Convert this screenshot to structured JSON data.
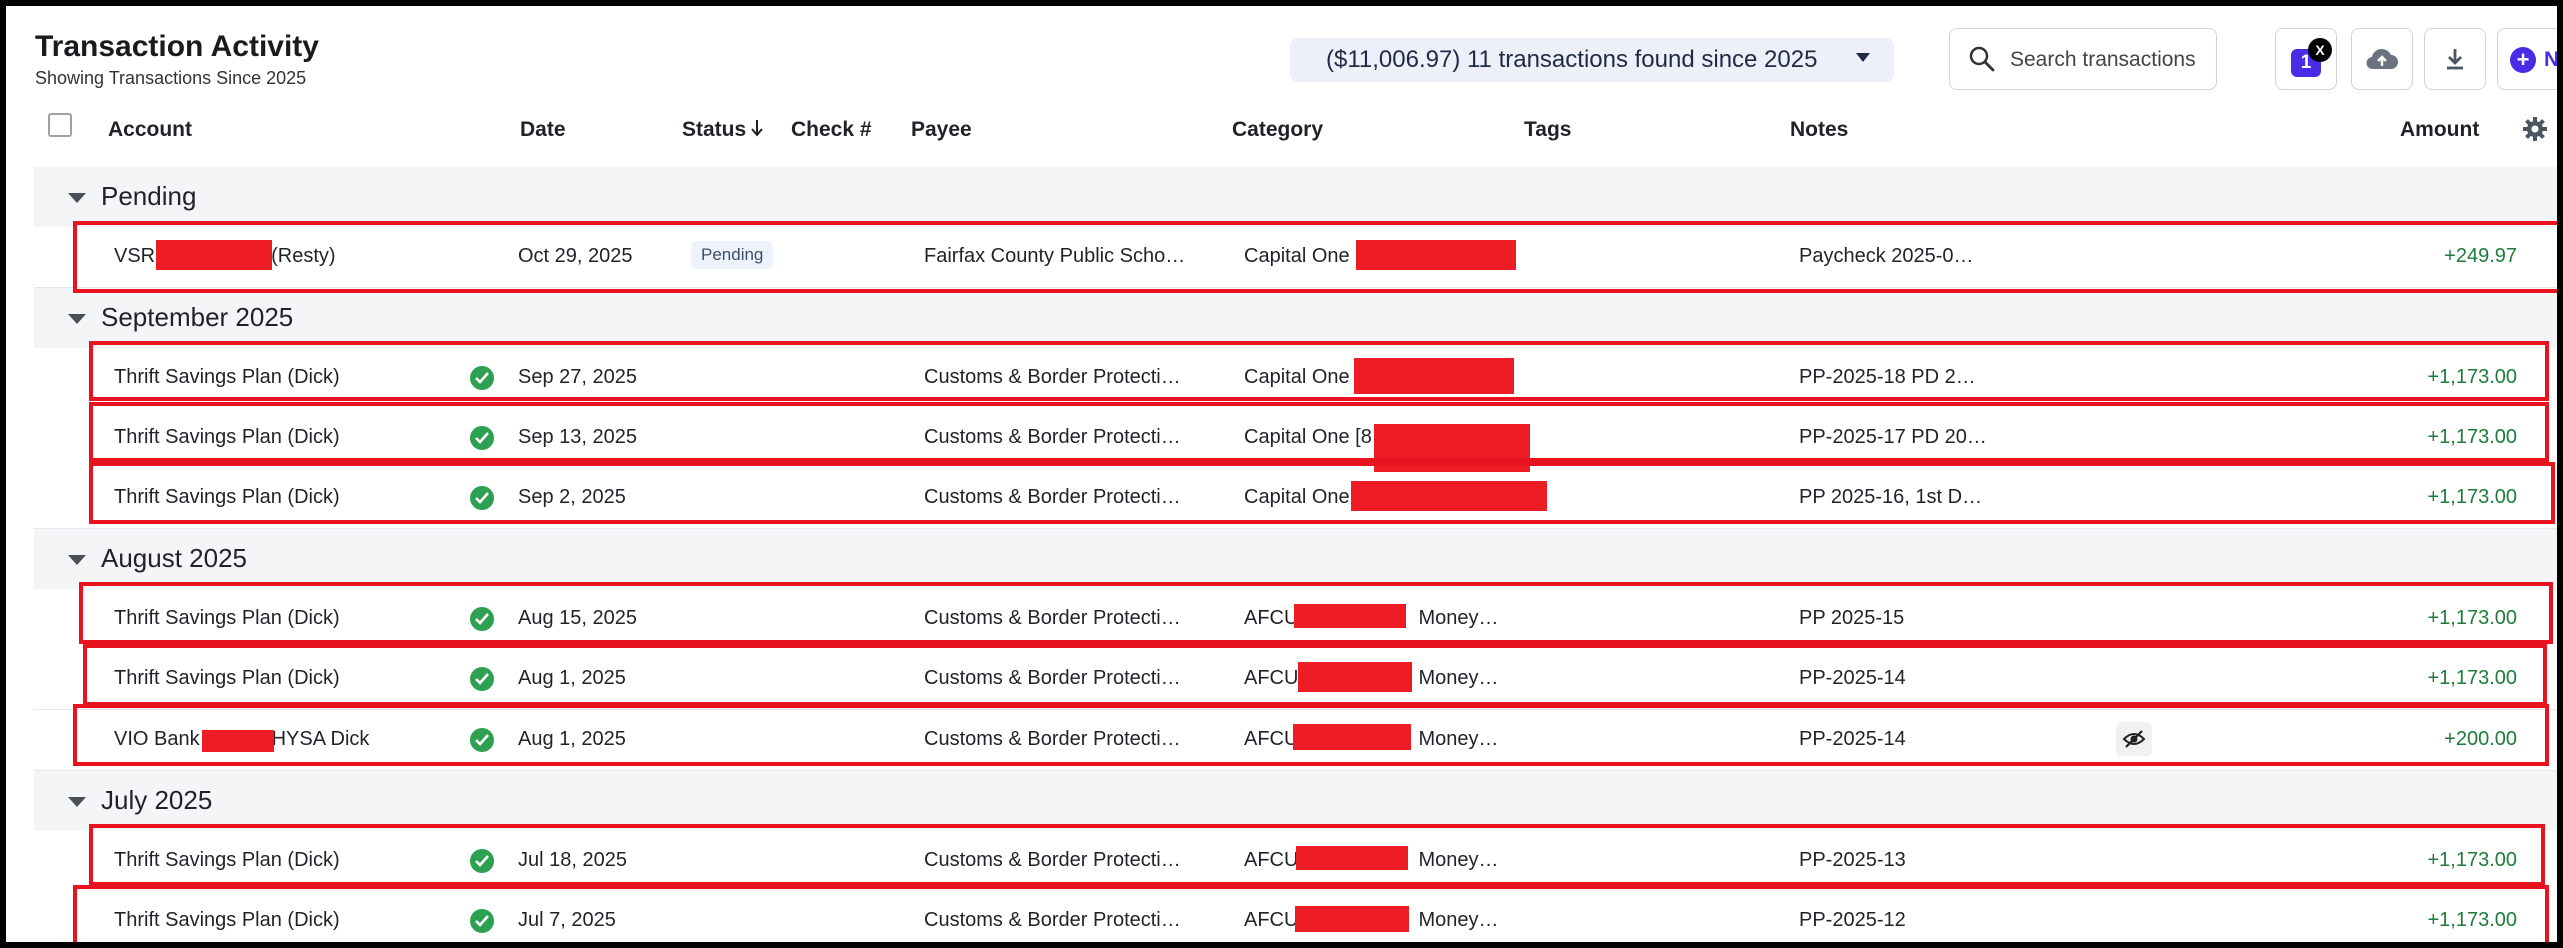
{
  "header": {
    "title": "Transaction Activity",
    "subtitle": "Showing Transactions Since 2025",
    "summary": "($11,006.97) 11 transactions found since 2025",
    "search_placeholder": "Search transactions",
    "filter_count": "1",
    "clear_filter": "X",
    "new_label": "Ne",
    "icons": [
      "search-icon",
      "cloud-upload-icon",
      "download-icon",
      "plus-circle-icon",
      "gear-icon",
      "chevron-down-icon"
    ]
  },
  "columns": {
    "account": "Account",
    "date": "Date",
    "status": "Status",
    "check": "Check #",
    "payee": "Payee",
    "category": "Category",
    "tags": "Tags",
    "notes": "Notes",
    "amount": "Amount"
  },
  "groups": [
    {
      "label": "Pending",
      "rows": [
        {
          "account": "VSR",
          "account_suffix": "(Resty)",
          "status": "Pending",
          "date": "Oct 29, 2025",
          "payee": "Fairfax County Public Scho…",
          "category": "Capital One",
          "notes": "Paycheck 2025-0…",
          "amount": "+249.97"
        }
      ]
    },
    {
      "label": "September 2025",
      "rows": [
        {
          "account": "Thrift Savings Plan (Dick)",
          "status": "cleared",
          "date": "Sep 27, 2025",
          "payee": "Customs & Border Protecti…",
          "category": "Capital One",
          "notes": "PP-2025-18 PD 2…",
          "amount": "+1,173.00"
        },
        {
          "account": "Thrift Savings Plan (Dick)",
          "status": "cleared",
          "date": "Sep 13, 2025",
          "payee": "Customs & Border Protecti…",
          "category": "Capital One [8",
          "notes": "PP-2025-17 PD 20…",
          "amount": "+1,173.00"
        },
        {
          "account": "Thrift Savings Plan (Dick)",
          "status": "cleared",
          "date": "Sep 2, 2025",
          "payee": "Customs & Border Protecti…",
          "category": "Capital One",
          "notes": "PP 2025-16, 1st D…",
          "amount": "+1,173.00"
        }
      ]
    },
    {
      "label": "August 2025",
      "rows": [
        {
          "account": "Thrift Savings Plan (Dick)",
          "status": "cleared",
          "date": "Aug 15, 2025",
          "payee": "Customs & Border Protecti…",
          "category": "AFCU",
          "category_suffix": "Money…",
          "notes": "PP 2025-15",
          "amount": "+1,173.00"
        },
        {
          "account": "Thrift Savings Plan (Dick)",
          "status": "cleared",
          "date": "Aug 1, 2025",
          "payee": "Customs & Border Protecti…",
          "category": "AFCU",
          "category_suffix": "Money…",
          "notes": "PP-2025-14",
          "amount": "+1,173.00"
        },
        {
          "account": "VIO Bank",
          "account_suffix": "HYSA Dick",
          "status": "cleared",
          "date": "Aug 1, 2025",
          "payee": "Customs & Border Protecti…",
          "category": "AFCU",
          "category_suffix": "Money…",
          "notes": "PP-2025-14",
          "amount": "+200.00"
        }
      ]
    },
    {
      "label": "July 2025",
      "rows": [
        {
          "account": "Thrift Savings Plan (Dick)",
          "status": "cleared",
          "date": "Jul 18, 2025",
          "payee": "Customs & Border Protecti…",
          "category": "AFCU",
          "category_suffix": "Money…",
          "notes": "PP-2025-13",
          "amount": "+1,173.00"
        },
        {
          "account": "Thrift Savings Plan (Dick)",
          "status": "cleared",
          "date": "Jul 7, 2025",
          "payee": "Customs & Border Protecti…",
          "category": "AFCU",
          "category_suffix": "Money…",
          "notes": "PP-2025-12",
          "amount": "+1,173.00"
        }
      ]
    }
  ],
  "colors": {
    "accent": "#4a2ce6",
    "positive_amount": "#1e7c3a",
    "cleared": "#2ea052",
    "annotation": "#e8131f"
  }
}
